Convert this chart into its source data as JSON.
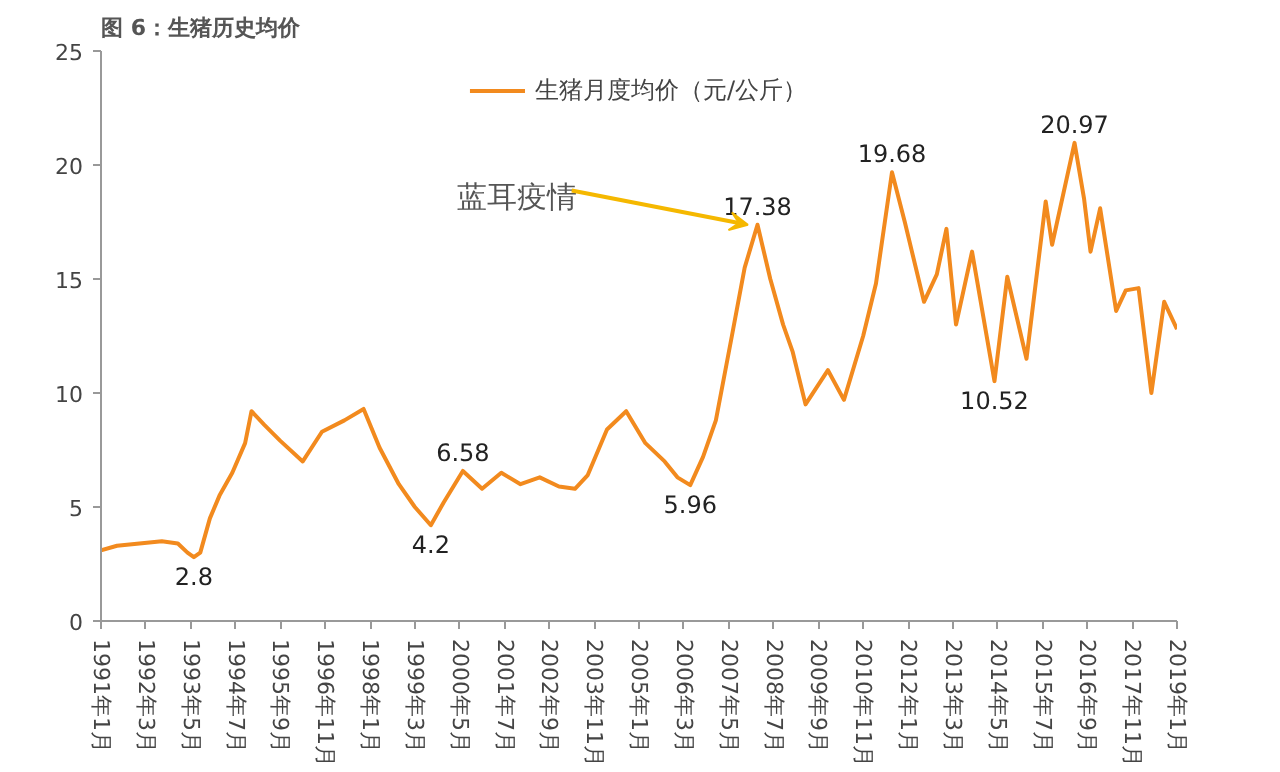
{
  "chart_data": {
    "type": "line",
    "title": "图 6：生猪历史均价",
    "legend": "top",
    "grid": false,
    "marker": "none",
    "line_style": "solid",
    "x": [
      "1991-01",
      "1991-06",
      "1992-01",
      "1992-08",
      "1993-01",
      "1993-04",
      "1993-06",
      "1993-08",
      "1993-11",
      "1994-02",
      "1994-06",
      "1994-10",
      "1994-12",
      "1995-04",
      "1995-09",
      "1996-04",
      "1996-10",
      "1997-05",
      "1997-11",
      "1998-04",
      "1998-10",
      "1999-03",
      "1999-08",
      "1999-12",
      "2000-06",
      "2000-12",
      "2001-06",
      "2001-12",
      "2002-06",
      "2002-12",
      "2003-05",
      "2003-09",
      "2004-03",
      "2004-09",
      "2005-03",
      "2005-09",
      "2006-01",
      "2006-05",
      "2006-09",
      "2007-01",
      "2007-06",
      "2007-10",
      "2008-02",
      "2008-06",
      "2008-10",
      "2009-01",
      "2009-05",
      "2009-12",
      "2010-05",
      "2010-11",
      "2011-03",
      "2011-08",
      "2011-12",
      "2012-06",
      "2012-10",
      "2013-01",
      "2013-04",
      "2013-09",
      "2014-04",
      "2014-08",
      "2015-02",
      "2015-08",
      "2015-10",
      "2016-05",
      "2016-08",
      "2016-10",
      "2017-01",
      "2017-06",
      "2017-09",
      "2018-01",
      "2018-05",
      "2018-09",
      "2019-01"
    ],
    "series": [
      {
        "name": "生猪月度均价（元/公斤）",
        "color": "#f28a1e",
        "values": [
          3.1,
          3.3,
          3.4,
          3.5,
          3.4,
          3.0,
          2.8,
          3.0,
          4.5,
          5.5,
          6.5,
          7.8,
          9.2,
          8.6,
          7.9,
          7.0,
          8.3,
          8.8,
          9.3,
          7.6,
          6.0,
          5.0,
          4.2,
          5.2,
          6.58,
          5.8,
          6.5,
          6.0,
          6.3,
          5.9,
          5.8,
          6.4,
          8.4,
          9.2,
          7.8,
          7.0,
          6.3,
          5.96,
          7.2,
          8.8,
          12.5,
          15.5,
          17.38,
          15.0,
          13.0,
          11.8,
          9.5,
          11.0,
          9.7,
          12.5,
          14.8,
          19.68,
          17.5,
          14.0,
          15.2,
          17.2,
          13.0,
          16.2,
          10.52,
          15.1,
          11.5,
          18.4,
          16.5,
          20.97,
          18.5,
          16.2,
          18.1,
          13.6,
          14.5,
          14.6,
          10.0,
          14.0,
          12.8
        ],
        "value_labels": [
          null,
          null,
          null,
          null,
          null,
          null,
          "2.8",
          null,
          null,
          null,
          null,
          null,
          null,
          null,
          null,
          null,
          null,
          null,
          null,
          null,
          null,
          null,
          "4.2",
          null,
          "6.58",
          null,
          null,
          null,
          null,
          null,
          null,
          null,
          null,
          null,
          null,
          null,
          null,
          "5.96",
          null,
          null,
          null,
          null,
          "17.38",
          null,
          null,
          null,
          null,
          null,
          null,
          null,
          null,
          "19.68",
          null,
          null,
          null,
          null,
          null,
          null,
          "10.52",
          null,
          null,
          null,
          null,
          "20.97",
          null,
          null,
          null,
          null,
          null,
          null,
          null,
          null,
          null
        ]
      }
    ],
    "xlim": [
      "1991-01",
      "2019-01"
    ],
    "xticks": [
      {
        "value": "1991-01",
        "label": "1991年1月"
      },
      {
        "value": "1992-03",
        "label": "1992年3月"
      },
      {
        "value": "1993-05",
        "label": "1993年5月"
      },
      {
        "value": "1994-07",
        "label": "1994年7月"
      },
      {
        "value": "1995-09",
        "label": "1995年9月"
      },
      {
        "value": "1996-11",
        "label": "1996年11月"
      },
      {
        "value": "1998-01",
        "label": "1998年1月"
      },
      {
        "value": "1999-03",
        "label": "1999年3月"
      },
      {
        "value": "2000-05",
        "label": "2000年5月"
      },
      {
        "value": "2001-07",
        "label": "2001年7月"
      },
      {
        "value": "2002-09",
        "label": "2002年9月"
      },
      {
        "value": "2003-11",
        "label": "2003年11月"
      },
      {
        "value": "2005-01",
        "label": "2005年1月"
      },
      {
        "value": "2006-03",
        "label": "2006年3月"
      },
      {
        "value": "2007-05",
        "label": "2007年5月"
      },
      {
        "value": "2008-07",
        "label": "2008年7月"
      },
      {
        "value": "2009-09",
        "label": "2009年9月"
      },
      {
        "value": "2010-11",
        "label": "2010年11月"
      },
      {
        "value": "2012-01",
        "label": "2012年1月"
      },
      {
        "value": "2013-03",
        "label": "2013年3月"
      },
      {
        "value": "2014-05",
        "label": "2014年5月"
      },
      {
        "value": "2015-07",
        "label": "2015年7月"
      },
      {
        "value": "2016-09",
        "label": "2016年9月"
      },
      {
        "value": "2017-11",
        "label": "2017年11月"
      },
      {
        "value": "2019-01",
        "label": "2019年1月"
      }
    ],
    "ylim": [
      0,
      25
    ],
    "yticks": [
      0,
      5,
      10,
      15,
      20,
      25
    ],
    "annotations": [
      {
        "text": "蓝耳疫情",
        "x": "2008-02",
        "y": 17.38
      }
    ]
  }
}
